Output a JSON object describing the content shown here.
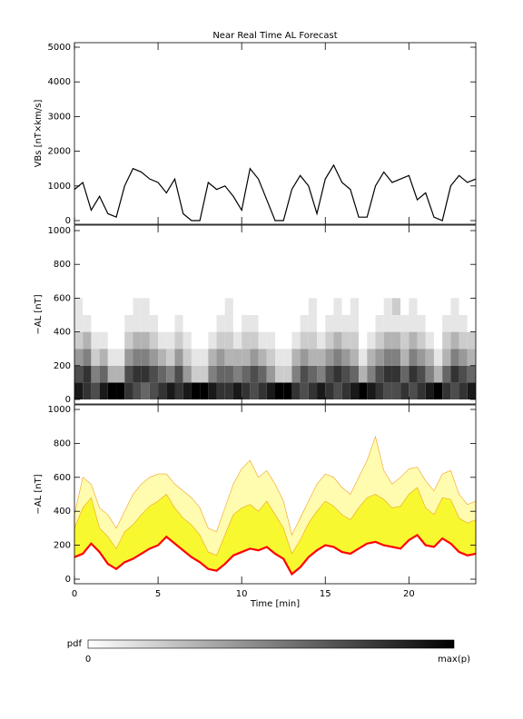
{
  "chart_data": [
    {
      "type": "line",
      "title": "Near Real Time AL Forecast",
      "y_label": "VBs [nT×km/s]",
      "color": "#000000",
      "x": [
        0,
        0.5,
        1,
        1.5,
        2,
        2.5,
        3,
        3.5,
        4,
        4.5,
        5,
        5.5,
        6,
        6.5,
        7,
        7.5,
        8,
        8.5,
        9,
        9.5,
        10,
        10.5,
        11,
        11.5,
        12,
        12.5,
        13,
        13.5,
        14,
        14.5,
        15,
        15.5,
        16,
        16.5,
        17,
        17.5,
        18,
        18.5,
        19,
        19.5,
        20,
        20.5,
        21,
        21.5,
        22,
        22.5,
        23,
        23.5,
        24
      ],
      "values": [
        900,
        1100,
        300,
        700,
        200,
        100,
        1000,
        1500,
        1400,
        1200,
        1100,
        800,
        1200,
        200,
        0,
        0,
        1100,
        900,
        1000,
        700,
        300,
        1500,
        1200,
        600,
        0,
        0,
        900,
        1300,
        1000,
        200,
        1200,
        1600,
        1100,
        900,
        100,
        100,
        1000,
        1400,
        1100,
        1200,
        1300,
        600,
        800,
        100,
        0,
        1000,
        1300,
        1100,
        1200
      ],
      "ylim": [
        0,
        5000
      ],
      "yticks": [
        0,
        1000,
        2000,
        3000,
        4000,
        5000
      ]
    },
    {
      "type": "heatmap",
      "y_label": "−AL [nT]",
      "x_edges": [
        0,
        0.5,
        1,
        1.5,
        2,
        2.5,
        3,
        3.5,
        4,
        4.5,
        5,
        5.5,
        6,
        6.5,
        7,
        7.5,
        8,
        8.5,
        9,
        9.5,
        10,
        10.5,
        11,
        11.5,
        12,
        12.5,
        13,
        13.5,
        14,
        14.5,
        15,
        15.5,
        16,
        16.5,
        17,
        17.5,
        18,
        18.5,
        19,
        19.5,
        20,
        20.5,
        21,
        21.5,
        22,
        22.5,
        23,
        23.5,
        24
      ],
      "y_edges": [
        0,
        100,
        200,
        300,
        400,
        500,
        600
      ],
      "z": [
        [
          0.9,
          0.8,
          0.7,
          0.9,
          1,
          1,
          0.8,
          0.7,
          0.6,
          0.7,
          0.8,
          0.9,
          0.8,
          0.9,
          1,
          1,
          0.9,
          0.8,
          0.8,
          0.9,
          0.8,
          0.7,
          0.8,
          0.9,
          1,
          1,
          0.8,
          0.7,
          0.8,
          0.9,
          0.8,
          0.7,
          0.8,
          0.9,
          1,
          0.9,
          0.8,
          0.7,
          0.7,
          0.8,
          0.7,
          0.8,
          0.9,
          1,
          0.8,
          0.7,
          0.8,
          0.9
        ],
        [
          0.7,
          0.8,
          0.5,
          0.6,
          0.3,
          0.3,
          0.7,
          0.8,
          0.8,
          0.7,
          0.6,
          0.5,
          0.7,
          0.4,
          0.2,
          0.2,
          0.5,
          0.6,
          0.6,
          0.5,
          0.6,
          0.7,
          0.6,
          0.4,
          0.2,
          0.2,
          0.5,
          0.7,
          0.6,
          0.5,
          0.7,
          0.8,
          0.7,
          0.6,
          0.3,
          0.5,
          0.7,
          0.8,
          0.8,
          0.6,
          0.8,
          0.7,
          0.5,
          0.3,
          0.6,
          0.8,
          0.7,
          0.6
        ],
        [
          0.4,
          0.5,
          0.2,
          0.3,
          0.1,
          0.1,
          0.4,
          0.5,
          0.5,
          0.4,
          0.3,
          0.2,
          0.4,
          0.2,
          0.1,
          0.1,
          0.3,
          0.4,
          0.3,
          0.3,
          0.3,
          0.4,
          0.3,
          0.2,
          0.1,
          0.1,
          0.3,
          0.4,
          0.3,
          0.3,
          0.4,
          0.5,
          0.4,
          0.3,
          0.1,
          0.3,
          0.4,
          0.5,
          0.5,
          0.3,
          0.5,
          0.4,
          0.3,
          0.1,
          0.3,
          0.5,
          0.4,
          0.3
        ],
        [
          0.2,
          0.3,
          0.1,
          0.1,
          0,
          0,
          0.2,
          0.3,
          0.3,
          0.2,
          0.1,
          0.1,
          0.2,
          0.1,
          0,
          0,
          0.1,
          0.2,
          0.2,
          0.1,
          0.2,
          0.2,
          0.1,
          0.1,
          0,
          0,
          0.1,
          0.2,
          0.2,
          0.1,
          0.2,
          0.3,
          0.2,
          0.2,
          0,
          0.1,
          0.2,
          0.3,
          0.3,
          0.2,
          0.3,
          0.2,
          0.1,
          0,
          0.2,
          0.3,
          0.2,
          0.2
        ],
        [
          0.1,
          0.1,
          0,
          0,
          0,
          0,
          0.1,
          0.1,
          0.1,
          0.1,
          0,
          0,
          0.1,
          0,
          0,
          0,
          0,
          0.1,
          0.1,
          0,
          0.1,
          0.1,
          0,
          0,
          0,
          0,
          0,
          0.1,
          0.1,
          0,
          0.1,
          0.1,
          0.1,
          0.1,
          0,
          0,
          0.1,
          0.1,
          0.1,
          0.1,
          0.1,
          0.1,
          0,
          0,
          0.1,
          0.1,
          0.1,
          0
        ],
        [
          0.1,
          0,
          0,
          0,
          0,
          0,
          0,
          0.1,
          0.1,
          0,
          0,
          0,
          0,
          0,
          0,
          0,
          0,
          0,
          0.1,
          0,
          0,
          0,
          0,
          0,
          0,
          0,
          0,
          0,
          0.1,
          0,
          0,
          0.1,
          0,
          0.1,
          0,
          0,
          0,
          0.1,
          0.2,
          0,
          0.1,
          0,
          0,
          0,
          0,
          0.1,
          0,
          0
        ]
      ],
      "ylim": [
        0,
        1000
      ],
      "yticks": [
        0,
        200,
        400,
        600,
        800,
        1000
      ],
      "colorbar": {
        "label": "pdf",
        "min_label": "0",
        "max_label": "max(p)"
      }
    },
    {
      "type": "band",
      "y_label": "−AL [nT]",
      "x_label": "Time [min]",
      "x": [
        0,
        0.5,
        1,
        1.5,
        2,
        2.5,
        3,
        3.5,
        4,
        4.5,
        5,
        5.5,
        6,
        6.5,
        7,
        7.5,
        8,
        8.5,
        9,
        9.5,
        10,
        10.5,
        11,
        11.5,
        12,
        12.5,
        13,
        13.5,
        14,
        14.5,
        15,
        15.5,
        16,
        16.5,
        17,
        17.5,
        18,
        18.5,
        19,
        19.5,
        20,
        20.5,
        21,
        21.5,
        22,
        22.5,
        23,
        23.5,
        24
      ],
      "series": [
        {
          "color": "#fffcb0",
          "fill": true,
          "values": [
            380,
            600,
            560,
            420,
            380,
            300,
            400,
            500,
            560,
            600,
            620,
            620,
            560,
            520,
            480,
            420,
            300,
            280,
            420,
            560,
            650,
            700,
            600,
            640,
            560,
            460,
            260,
            360,
            460,
            560,
            620,
            600,
            540,
            500,
            600,
            700,
            840,
            640,
            560,
            600,
            650,
            660,
            580,
            520,
            620,
            640,
            500,
            440,
            460
          ]
        },
        {
          "color": "#f8f830",
          "fill": true,
          "values": [
            300,
            420,
            480,
            300,
            250,
            180,
            280,
            320,
            380,
            430,
            460,
            500,
            420,
            360,
            320,
            260,
            160,
            140,
            260,
            380,
            420,
            440,
            400,
            460,
            380,
            300,
            150,
            230,
            330,
            400,
            460,
            430,
            380,
            350,
            420,
            480,
            500,
            470,
            420,
            430,
            500,
            540,
            420,
            380,
            480,
            470,
            360,
            330,
            350
          ]
        },
        {
          "color": "#ff0000",
          "fill": false,
          "values": [
            130,
            150,
            210,
            160,
            90,
            60,
            100,
            120,
            150,
            180,
            200,
            250,
            210,
            170,
            130,
            100,
            60,
            50,
            90,
            140,
            160,
            180,
            170,
            190,
            150,
            120,
            30,
            70,
            130,
            170,
            200,
            190,
            160,
            150,
            180,
            210,
            220,
            200,
            190,
            180,
            230,
            260,
            200,
            190,
            240,
            210,
            160,
            140,
            150
          ]
        }
      ],
      "xlim": [
        0,
        24
      ],
      "xticks": [
        0,
        5,
        10,
        15,
        20
      ],
      "ylim": [
        0,
        1000
      ],
      "yticks": [
        0,
        200,
        400,
        600,
        800,
        1000
      ]
    }
  ]
}
